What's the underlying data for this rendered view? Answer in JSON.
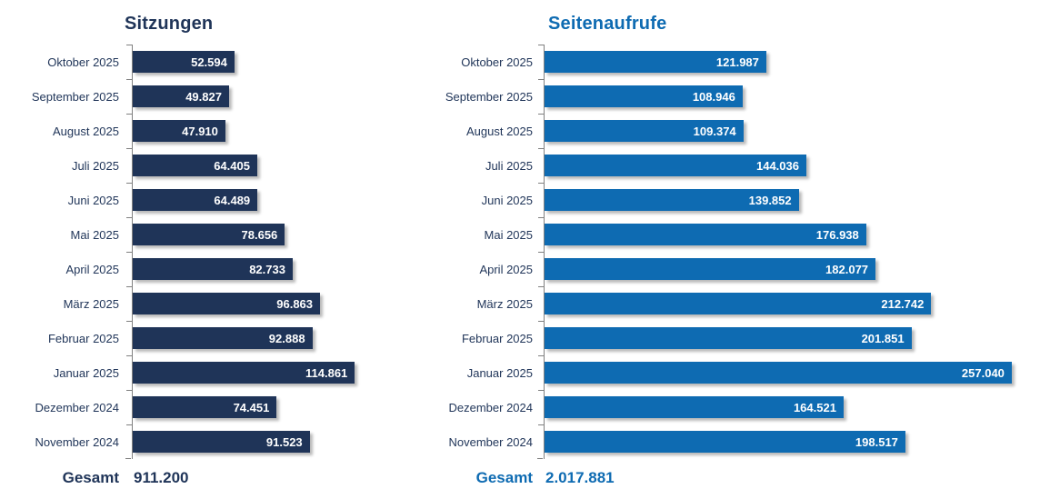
{
  "page": {
    "background": "#ffffff"
  },
  "chart_data": [
    {
      "type": "bar",
      "orientation": "horizontal",
      "title": "Sitzungen",
      "categories": [
        "Oktober 2025",
        "September 2025",
        "August 2025",
        "Juli 2025",
        "Juni 2025",
        "Mai 2025",
        "April 2025",
        "März 2025",
        "Februar 2025",
        "Januar 2025",
        "Dezember 2024",
        "November 2024"
      ],
      "values": [
        52594,
        49827,
        47910,
        64405,
        64489,
        78656,
        82733,
        96863,
        92888,
        114861,
        74451,
        91523
      ],
      "value_labels": [
        "52.594",
        "49.827",
        "47.910",
        "64.405",
        "64.489",
        "78.656",
        "82.733",
        "96.863",
        "92.888",
        "114.861",
        "74.451",
        "91.523"
      ],
      "total_label": "Gesamt",
      "total_value": 911200,
      "total_display": "911.200",
      "bar_color": "#1F3458",
      "title_color": "#1F3458",
      "total_color": "#1F3458",
      "category_label_color": "#1F3458",
      "data_label_color": "#FFFFFF",
      "axis_color": "#808080",
      "legend": "none",
      "value_axis": "hidden",
      "data_labels": "inside-end"
    },
    {
      "type": "bar",
      "orientation": "horizontal",
      "title": "Seitenaufrufe",
      "categories": [
        "Oktober 2025",
        "September 2025",
        "August 2025",
        "Juli 2025",
        "Juni 2025",
        "Mai 2025",
        "April 2025",
        "März 2025",
        "Februar 2025",
        "Januar 2025",
        "Dezember 2024",
        "November 2024"
      ],
      "values": [
        121987,
        108946,
        109374,
        144036,
        139852,
        176938,
        182077,
        212742,
        201851,
        257040,
        164521,
        198517
      ],
      "value_labels": [
        "121.987",
        "108.946",
        "109.374",
        "144.036",
        "139.852",
        "176.938",
        "182.077",
        "212.742",
        "201.851",
        "257.040",
        "164.521",
        "198.517"
      ],
      "total_label": "Gesamt",
      "total_value": 2017881,
      "total_display": "2.017.881",
      "bar_color": "#0E6BB2",
      "title_color": "#0E6BB2",
      "total_color": "#0E6BB2",
      "category_label_color": "#1F3458",
      "data_label_color": "#FFFFFF",
      "axis_color": "#808080",
      "legend": "none",
      "value_axis": "hidden",
      "data_labels": "inside-end"
    }
  ]
}
